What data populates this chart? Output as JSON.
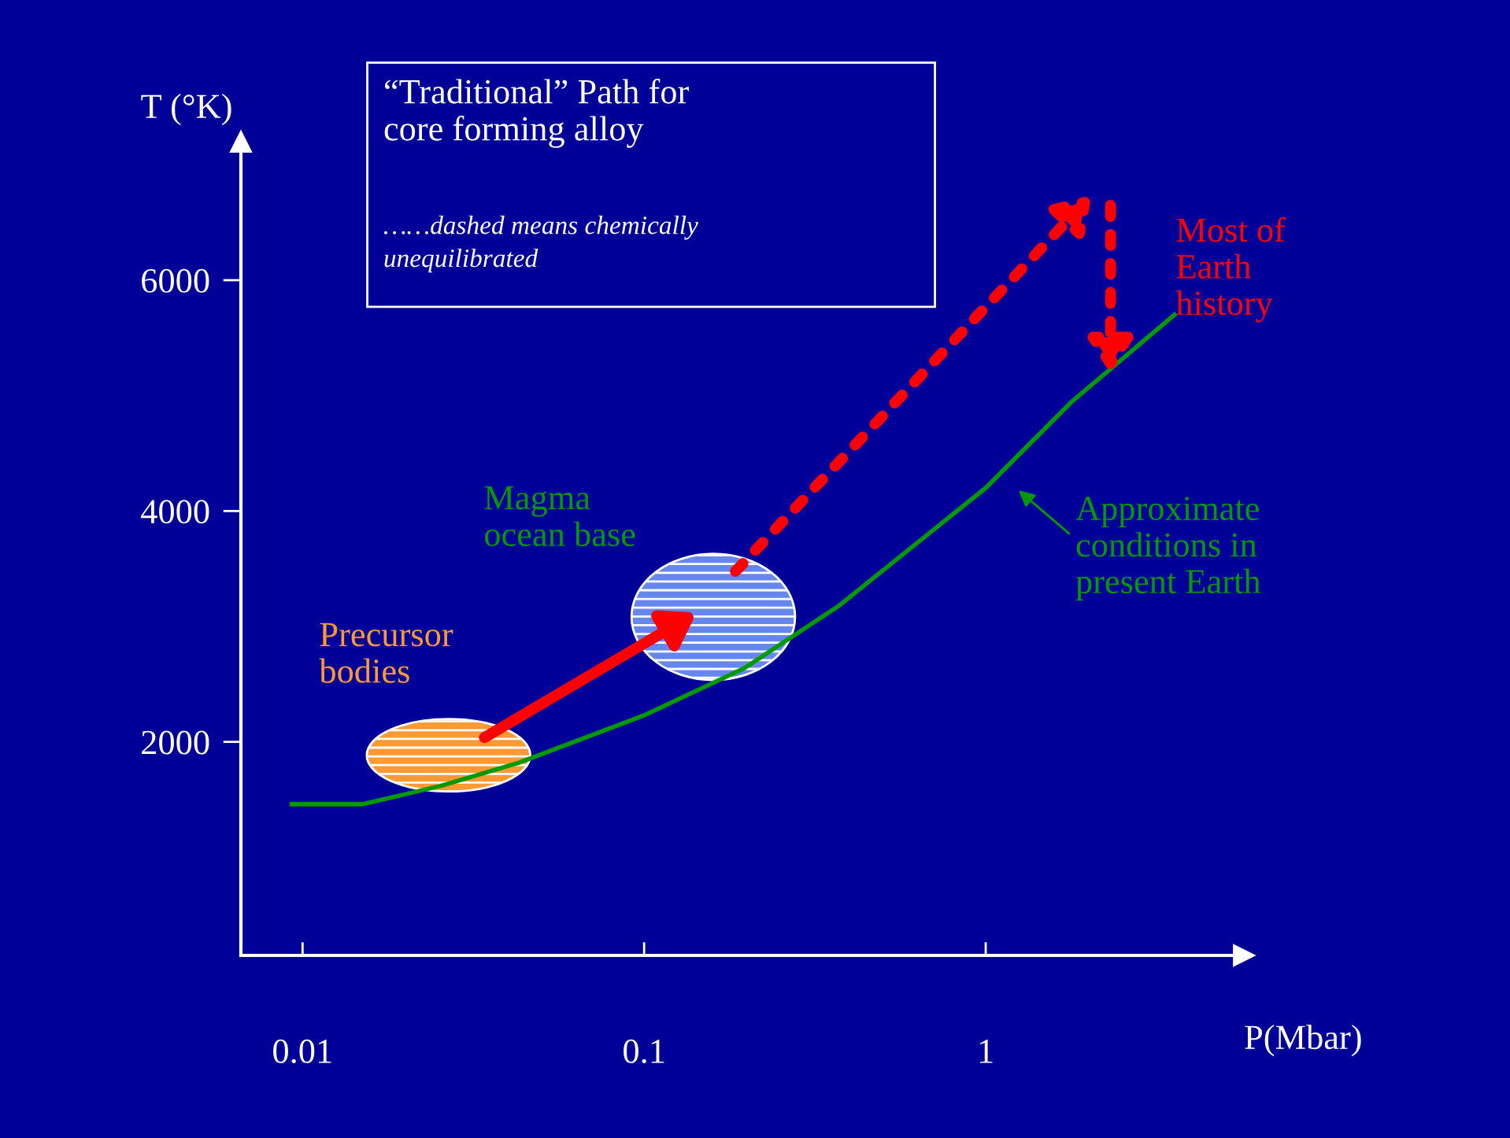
{
  "chart_data": {
    "type": "line",
    "title": "“Traditional” Path for\ncore forming alloy",
    "subtitle": "……dashed means chemically\nunequilibrated",
    "xlabel": "P(Mbar)",
    "ylabel": "T (°K)",
    "log": "x",
    "x": [
      0.0093,
      0.015,
      0.0255,
      0.043,
      0.1,
      0.197,
      0.372,
      0.634,
      1,
      1.79,
      3.57
    ],
    "series": [
      {
        "color": "#009900",
        "values": [
          1460,
          1460,
          1620,
          1820,
          2230,
          2640,
          3180,
          3730,
          4200,
          4950,
          5700
        ]
      }
    ],
    "xlim": [
      0.0066,
      5.7
    ],
    "ylim": [
      150,
      7200
    ],
    "xticks": [
      0.01,
      0.1,
      1
    ],
    "yticks": [
      2000,
      4000,
      6000
    ],
    "annotations": [
      "Precursor\nbodies",
      "Magma\nocean base",
      "Most of\nEarth\nhistory",
      "Approximate\nconditions in\npresent Earth"
    ],
    "grid": false,
    "legend": false,
    "marker": "none",
    "line_style": "solid"
  }
}
